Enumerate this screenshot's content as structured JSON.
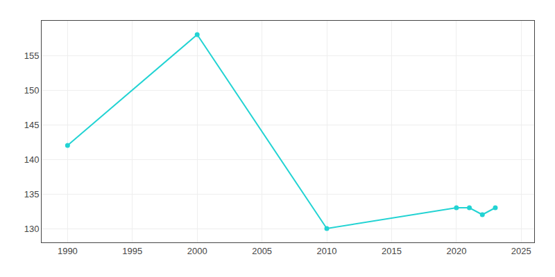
{
  "chart_data": {
    "type": "line",
    "x": [
      1990,
      2000,
      2010,
      2020,
      2021,
      2022,
      2023
    ],
    "values": [
      142,
      158,
      130,
      133,
      133,
      132,
      133
    ],
    "color": "#22d3d3",
    "marker": "circle",
    "xlim": [
      1988,
      2026
    ],
    "ylim": [
      128,
      160
    ],
    "xticks": [
      1990,
      1995,
      2000,
      2005,
      2010,
      2015,
      2020,
      2025
    ],
    "yticks": [
      130,
      135,
      140,
      145,
      150,
      155
    ],
    "grid": true
  }
}
